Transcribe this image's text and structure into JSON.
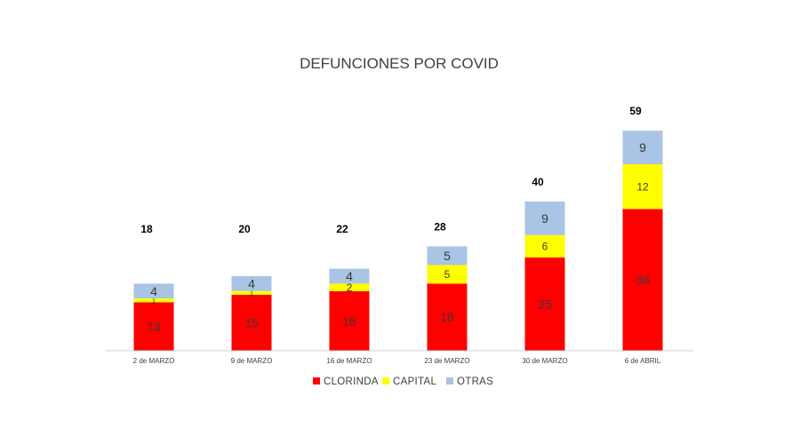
{
  "chart_data": {
    "type": "bar",
    "stacked": true,
    "title": "DEFUNCIONES POR COVID",
    "xlabel": "",
    "ylabel": "",
    "categories": [
      "2 de MARZO",
      "9 de MARZO",
      "16 de MARZO",
      "23 de MARZO",
      "30 de MARZO",
      "6 de ABRIL"
    ],
    "series": [
      {
        "name": "CLORINDA",
        "values": [
          13,
          15,
          16,
          18,
          25,
          38
        ],
        "color": "#ff0000"
      },
      {
        "name": "CAPITAL",
        "values": [
          1,
          1,
          2,
          5,
          6,
          12
        ],
        "color": "#ffff00"
      },
      {
        "name": "OTRAS",
        "values": [
          4,
          4,
          4,
          5,
          9,
          9
        ],
        "color": "#a9c4e4"
      }
    ],
    "totals": [
      18,
      20,
      22,
      28,
      40,
      59
    ],
    "ylim": [
      0,
      70
    ],
    "grid": false,
    "legend": "bottom"
  }
}
